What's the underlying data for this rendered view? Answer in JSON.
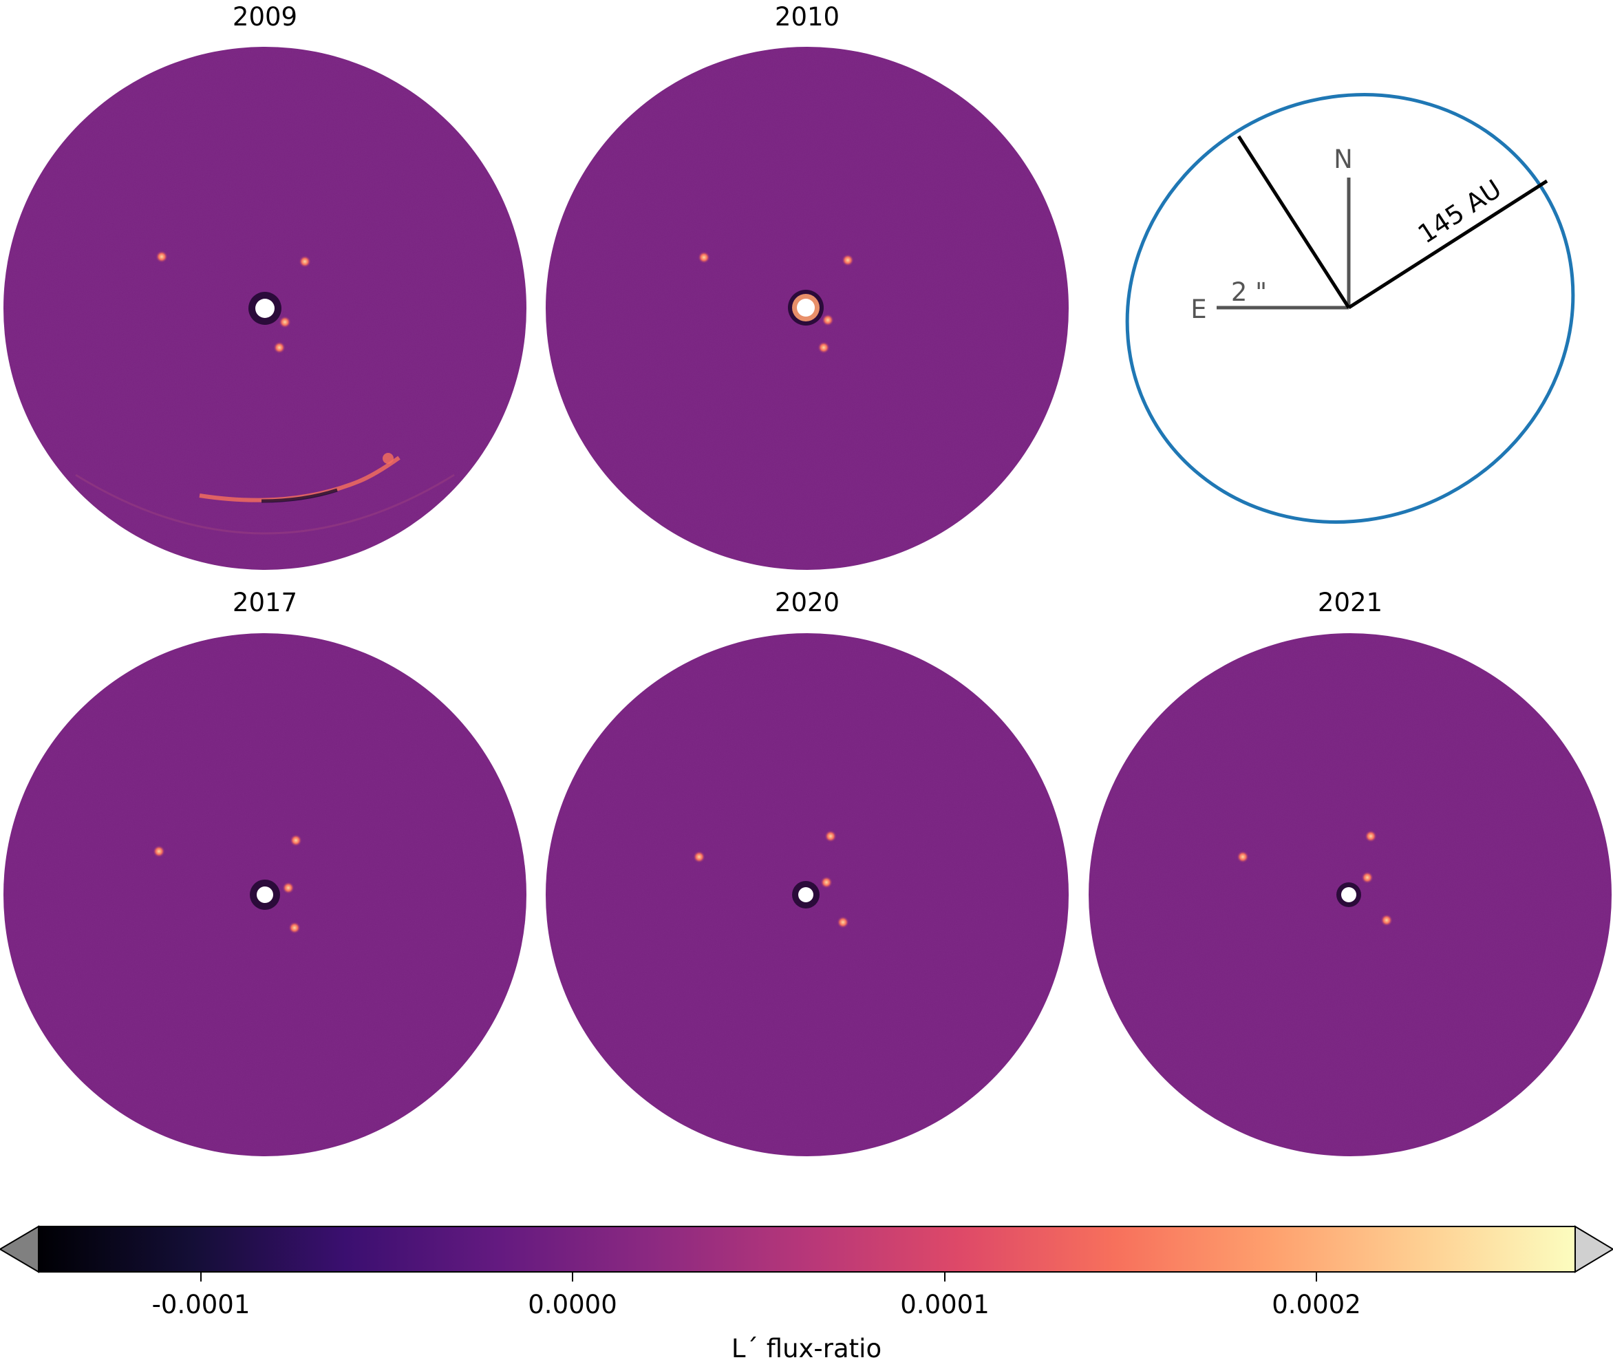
{
  "panels": [
    {
      "title": "2009"
    },
    {
      "title": "2010"
    },
    {
      "title": "2017"
    },
    {
      "title": "2020"
    },
    {
      "title": "2021"
    }
  ],
  "compass": {
    "north_label": "N",
    "east_label": "E",
    "scale_label": "2 \"",
    "distance_label": "145 AU",
    "orbit_color": "#1f77b4"
  },
  "colorbar": {
    "label": "L´ flux-ratio",
    "colormap": "magma",
    "ticks": [
      "-0.0001",
      "0.0000",
      "0.0001",
      "0.0002"
    ],
    "range": [
      -0.000145,
      0.000275
    ]
  },
  "colors": {
    "background_purple": "#7a2382"
  }
}
